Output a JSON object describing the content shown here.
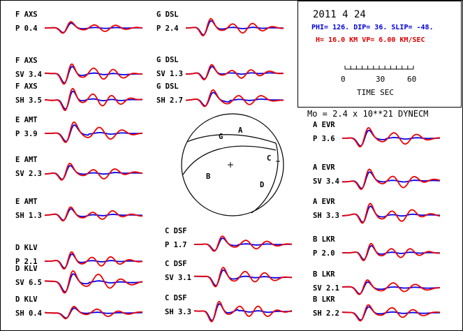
{
  "header": {
    "date": "2011  4 24",
    "params_blue": "PHI= 126. DIP= 36. SLIP= -48.",
    "params_red": "H= 16.0 KM  VP= 6.00 KM/SEC",
    "scale_ticks": [
      "0",
      "30",
      "60"
    ],
    "scale_label": "TIME  SEC",
    "moment": "Mo =  2.4 x 10**21 DYNECM"
  },
  "colors": {
    "observed": "#0000ee",
    "synthetic": "#ee0000",
    "text_blue": "#0000dd",
    "text_red": "#dd0000"
  },
  "beachball": {
    "labels": [
      "G",
      "A",
      "B",
      "C",
      "D"
    ]
  },
  "chart_data": {
    "type": "line",
    "title": "2011  4 24",
    "series": [
      {
        "station": "F AXS",
        "phase": "P",
        "value": "0.4"
      },
      {
        "station": "F AXS",
        "phase": "SV",
        "value": "3.4"
      },
      {
        "station": "F AXS",
        "phase": "SH",
        "value": "3.5"
      },
      {
        "station": "E AMT",
        "phase": "P",
        "value": "3.9"
      },
      {
        "station": "E AMT",
        "phase": "SV",
        "value": "2.3"
      },
      {
        "station": "E AMT",
        "phase": "SH",
        "value": "1.3"
      },
      {
        "station": "D KLV",
        "phase": "P",
        "value": "2.1"
      },
      {
        "station": "D KLV",
        "phase": "SV",
        "value": "6.5"
      },
      {
        "station": "D KLV",
        "phase": "SH",
        "value": "0.4"
      },
      {
        "station": "G DSL",
        "phase": "P",
        "value": "2.4"
      },
      {
        "station": "G DSL",
        "phase": "SV",
        "value": "1.3"
      },
      {
        "station": "G DSL",
        "phase": "SH",
        "value": "2.7"
      },
      {
        "station": "C DSF",
        "phase": "P",
        "value": "1.7"
      },
      {
        "station": "C DSF",
        "phase": "SV",
        "value": "3.1"
      },
      {
        "station": "C DSF",
        "phase": "SH",
        "value": "3.3"
      },
      {
        "station": "A EVR",
        "phase": "P",
        "value": "3.6"
      },
      {
        "station": "A EVR",
        "phase": "SV",
        "value": "3.4"
      },
      {
        "station": "A EVR",
        "phase": "SH",
        "value": "3.3"
      },
      {
        "station": "B LKR",
        "phase": "P",
        "value": "2.0"
      },
      {
        "station": "B LKR",
        "phase": "SV",
        "value": "2.1"
      },
      {
        "station": "B LKR",
        "phase": "SH",
        "value": "2.2"
      }
    ]
  }
}
